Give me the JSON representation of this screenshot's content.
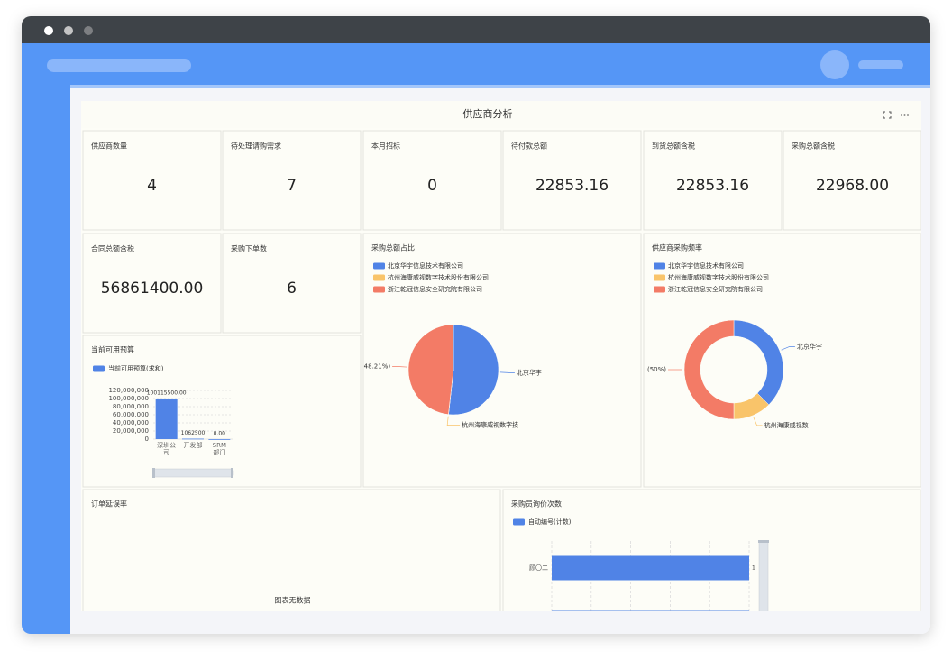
{
  "header": {
    "title": "供应商分析"
  },
  "kpis": [
    {
      "label": "供应商数量",
      "value": "4"
    },
    {
      "label": "待处理请购需求",
      "value": "7"
    },
    {
      "label": "本月招标",
      "value": "0"
    },
    {
      "label": "待付款总额",
      "value": "22853.16"
    },
    {
      "label": "到货总额含税",
      "value": "22853.16"
    },
    {
      "label": "采购总额含税",
      "value": "22968.00"
    },
    {
      "label": "合同总额含税",
      "value": "56861400.00"
    },
    {
      "label": "采购下单数",
      "value": "6"
    }
  ],
  "chart_data": [
    {
      "type": "pie",
      "title": "采购总额占比",
      "categories": [
        "北京华宇信息技术有限公司",
        "杭州海康威视数字技术股份有限公司",
        "浙江乾冠信息安全研究院有限公司"
      ],
      "values": [
        51.74,
        0.05,
        48.21
      ],
      "colors": [
        "#5083e6",
        "#f9c46a",
        "#f37b66"
      ],
      "slice_labels": [
        "北京华宇",
        "杭州海康威视数字技",
        "48.21%)"
      ]
    },
    {
      "type": "donut",
      "title": "供应商采购频率",
      "categories": [
        "北京华宇信息技术有限公司",
        "杭州海康威视数字技术股份有限公司",
        "浙江乾冠信息安全研究院有限公司"
      ],
      "values": [
        37.5,
        12.5,
        50
      ],
      "colors": [
        "#5083e6",
        "#f9c46a",
        "#f37b66"
      ],
      "slice_labels": [
        "北京华宇",
        "杭州海康威视数",
        "(50%)"
      ]
    },
    {
      "type": "bar",
      "title": "当前可用预算",
      "categories": [
        "深圳公司",
        "开发部",
        "SRM部门"
      ],
      "series": [
        {
          "name": "当前可用预算(求和)",
          "color": "#5083e6",
          "values": [
            100115500,
            1062500,
            0
          ]
        }
      ],
      "value_labels": [
        "100115500.00",
        "1062500",
        "0.00"
      ],
      "ylim": [
        0,
        120000000
      ],
      "yticks": [
        0,
        {
          "value": 20000000,
          "label": "20,000,000"
        },
        {
          "value": 40000000,
          "label": "40,000,000"
        },
        {
          "value": 60000000,
          "label": "60,000,000"
        },
        {
          "value": 80000000,
          "label": "80,000,000"
        },
        {
          "value": 100000000,
          "label": "100,000,000"
        },
        {
          "value": 120000000,
          "label": "120,000,000"
        }
      ],
      "grid": true
    },
    {
      "type": "empty",
      "title": "订单延误率",
      "message": "图表无数据"
    },
    {
      "type": "hbar",
      "title": "采购员询价次数",
      "categories": [
        "顾〇二",
        null
      ],
      "series": [
        {
          "name": "自动编号(计数)",
          "color": "#5083e6",
          "values": [
            1,
            1
          ]
        }
      ],
      "value_labels": [
        "1",
        null
      ],
      "xlim": [
        0,
        1
      ],
      "xticks": [
        0,
        0.2,
        0.4,
        0.6,
        0.8,
        1
      ],
      "grid": true
    }
  ]
}
